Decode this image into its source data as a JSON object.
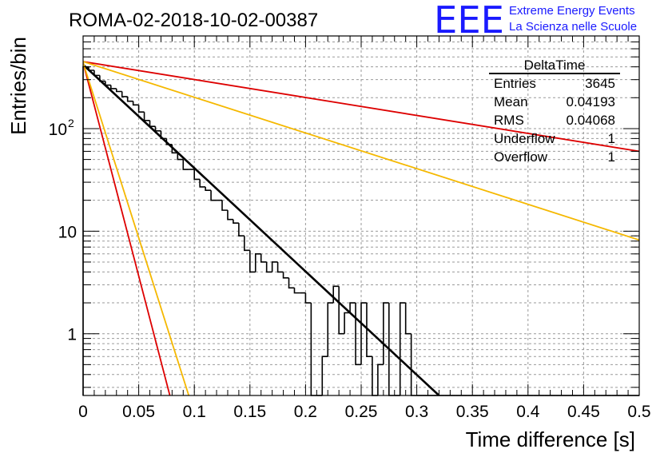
{
  "header": {
    "run_title": "ROMA-02-2018-10-02-00387",
    "logo_text": "EEE",
    "logo_line1": "Extreme Energy Events",
    "logo_line2": "La Scienza nelle Scuole"
  },
  "stats": {
    "title": "DeltaTime",
    "rows": [
      {
        "label": "Entries",
        "value": "3645"
      },
      {
        "label": "Mean",
        "value": "0.04193"
      },
      {
        "label": "RMS",
        "value": "0.04068"
      },
      {
        "label": "Underflow",
        "value": "1"
      },
      {
        "label": "Overflow",
        "value": "1"
      }
    ]
  },
  "colors": {
    "histogram": "#000000",
    "fit": "#000000",
    "red_band": "#dd0000",
    "orange_band": "#f5b800"
  },
  "chart_data": {
    "type": "line",
    "xlabel": "Time difference [s]",
    "ylabel": "Entries/bin",
    "xlim": [
      0,
      0.5
    ],
    "ylim": [
      0.25,
      800
    ],
    "yscale": "log",
    "grid": true,
    "x_ticks": [
      "0",
      "0.05",
      "0.1",
      "0.15",
      "0.2",
      "0.25",
      "0.3",
      "0.35",
      "0.4",
      "0.45",
      "0.5"
    ],
    "y_tick_labels": [
      {
        "value": 1,
        "label": "1"
      },
      {
        "value": 10,
        "label": "10"
      },
      {
        "value": 100,
        "label": "10",
        "sup": "2"
      }
    ],
    "histogram": {
      "bin_width": 0.005,
      "x_start": 0,
      "values": [
        400,
        370,
        330,
        290,
        265,
        245,
        230,
        205,
        185,
        170,
        145,
        120,
        105,
        95,
        80,
        70,
        58,
        50,
        40,
        40,
        32,
        27,
        25,
        20,
        20,
        16,
        13,
        12,
        9,
        6.5,
        4,
        6,
        5,
        4,
        5,
        4,
        3.5,
        2.8,
        2.5,
        2.5,
        2,
        0,
        0,
        0.6,
        2,
        2.9,
        1,
        1.6,
        2,
        0.5,
        2,
        0.6,
        0,
        0.5,
        2,
        0,
        0,
        2,
        1,
        0,
        0,
        0,
        0,
        0,
        0,
        0,
        0,
        0,
        0,
        0,
        0,
        0,
        0,
        0,
        0,
        0,
        0,
        0,
        0,
        0,
        0,
        0,
        0,
        0,
        0,
        0,
        0,
        0,
        0,
        0,
        0,
        0,
        0,
        0,
        0,
        0,
        0,
        0,
        0,
        0
      ]
    },
    "series": [
      {
        "values": [
          [
            0,
            420
          ],
          [
            0.32,
            0.25
          ]
        ]
      },
      {
        "values": [
          [
            0,
            450
          ],
          [
            0.5,
            60
          ]
        ]
      },
      {
        "values": [
          [
            0,
            450
          ],
          [
            0.5,
            8.2
          ]
        ]
      },
      {
        "values": [
          [
            0,
            440
          ],
          [
            0.078,
            0.25
          ]
        ]
      },
      {
        "values": [
          [
            0,
            440
          ],
          [
            0.095,
            0.25
          ]
        ]
      }
    ]
  }
}
